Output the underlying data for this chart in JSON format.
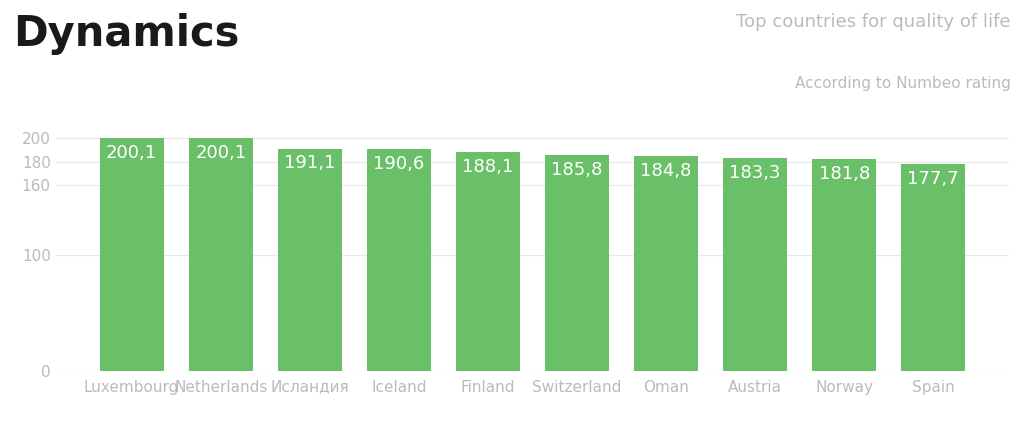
{
  "title": "Dynamics",
  "subtitle": "Top countries for quality of life",
  "subtitle2": "According to Numbeo rating",
  "categories": [
    "Luxembourg",
    "Netherlands",
    "Исландия",
    "Iceland",
    "Finland",
    "Switzerland",
    "Oman",
    "Austria",
    "Norway",
    "Spain"
  ],
  "values": [
    200.1,
    200.1,
    191.1,
    190.6,
    188.1,
    185.8,
    184.8,
    183.3,
    181.8,
    177.7
  ],
  "bar_color": "#6abf69",
  "background_color": "#ffffff",
  "label_color": "#ffffff",
  "axis_label_color": "#bbbbbb",
  "title_color": "#1a1a1a",
  "grid_color": "#e8e8e8",
  "ylim": [
    0,
    210
  ],
  "yticks": [
    0,
    100,
    160,
    180,
    200
  ],
  "title_fontsize": 30,
  "subtitle_fontsize": 13,
  "subtitle2_fontsize": 11,
  "bar_label_fontsize": 13,
  "tick_fontsize": 11
}
